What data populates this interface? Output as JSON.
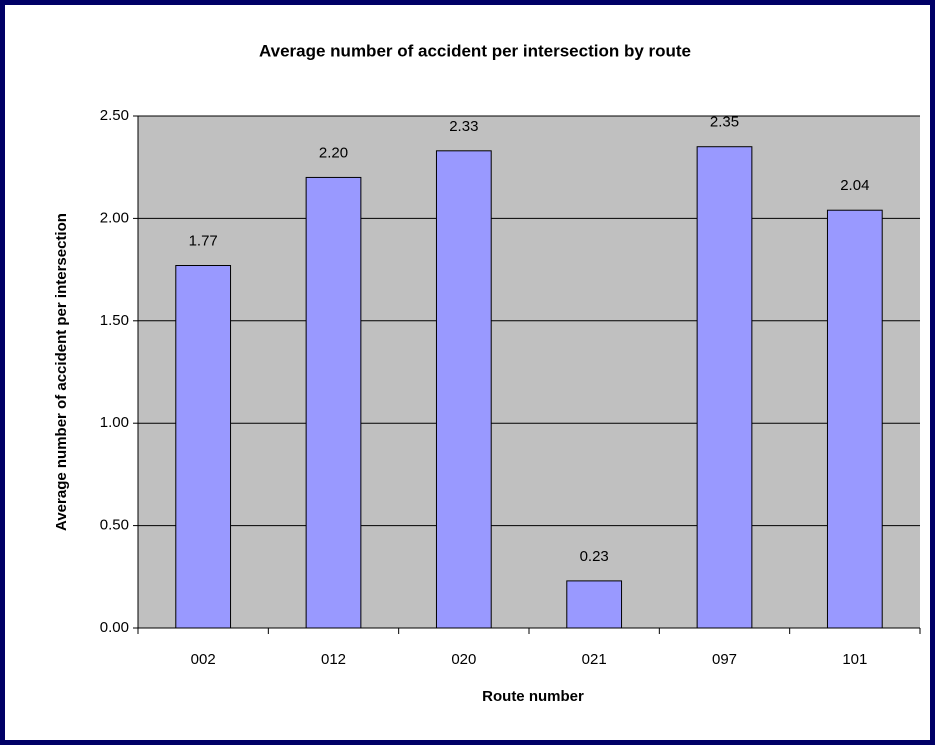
{
  "chart_data": {
    "type": "bar",
    "title": "Average number of accident per intersection by route",
    "x_label": "Route number",
    "y_label": "Average number of accident per intersection",
    "categories": [
      "002",
      "012",
      "020",
      "021",
      "097",
      "101"
    ],
    "values": [
      1.77,
      2.2,
      2.33,
      0.23,
      2.35,
      2.04
    ],
    "value_labels": [
      "1.77",
      "2.20",
      "2.33",
      "0.23",
      "2.35",
      "2.04"
    ],
    "color": "#9999ff",
    "ylim": [
      0,
      2.5
    ],
    "yticks": [
      {
        "value": 0,
        "label": "0.00"
      },
      {
        "value": 0.5,
        "label": "0.50"
      },
      {
        "value": 1,
        "label": "1.00"
      },
      {
        "value": 1.5,
        "label": "1.50"
      },
      {
        "value": 2,
        "label": "2.00"
      },
      {
        "value": 2.5,
        "label": "2.50"
      }
    ],
    "grid": true
  }
}
